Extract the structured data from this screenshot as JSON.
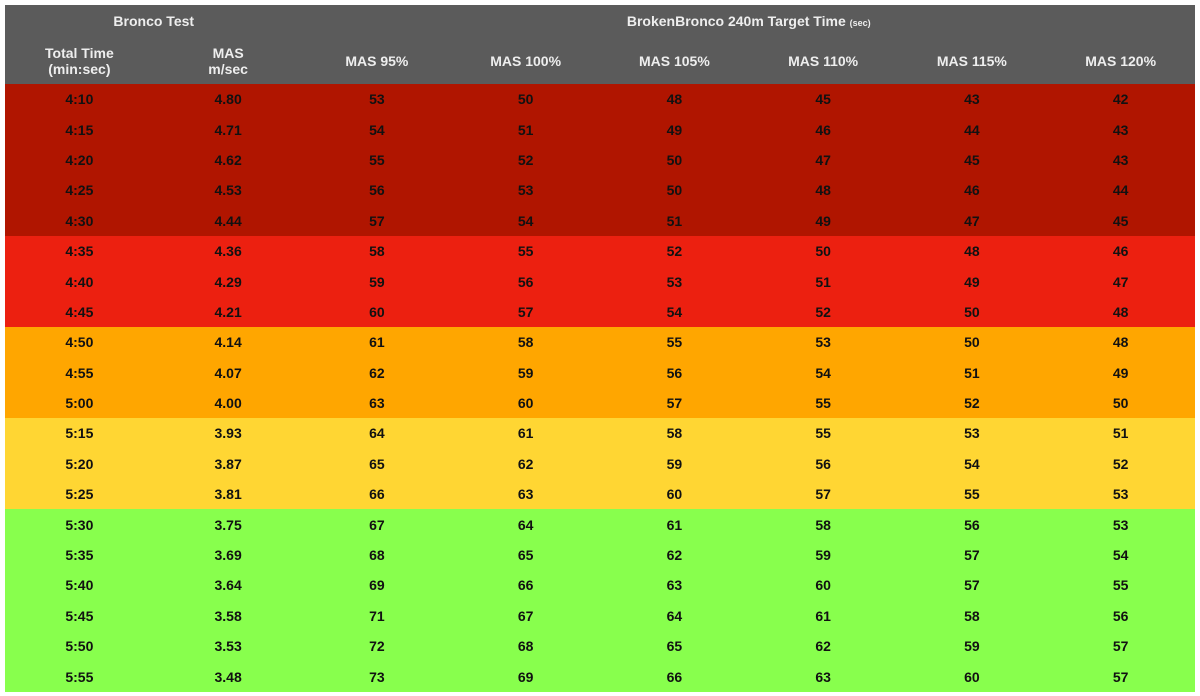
{
  "header": {
    "group_left": "Bronco Test",
    "group_right": {
      "title": "BrokenBronco 240m Target Time",
      "unit": "(sec)"
    },
    "columns": [
      [
        "Total Time",
        "(min:sec)"
      ],
      [
        "MAS",
        "m/sec"
      ],
      [
        "MAS 95%"
      ],
      [
        "MAS 100%"
      ],
      [
        "MAS 105%"
      ],
      [
        "MAS 110%"
      ],
      [
        "MAS 115%"
      ],
      [
        "MAS 120%"
      ]
    ],
    "color": "#5b5b5b"
  },
  "table": {
    "groups": [
      {
        "color": "#b01500",
        "rows": [
          [
            "4:10",
            "4.80",
            "53",
            "50",
            "48",
            "45",
            "43",
            "42"
          ],
          [
            "4:15",
            "4.71",
            "54",
            "51",
            "49",
            "46",
            "44",
            "43"
          ],
          [
            "4:20",
            "4.62",
            "55",
            "52",
            "50",
            "47",
            "45",
            "43"
          ],
          [
            "4:25",
            "4.53",
            "56",
            "53",
            "50",
            "48",
            "46",
            "44"
          ],
          [
            "4:30",
            "4.44",
            "57",
            "54",
            "51",
            "49",
            "47",
            "45"
          ]
        ]
      },
      {
        "color": "#ec2010",
        "rows": [
          [
            "4:35",
            "4.36",
            "58",
            "55",
            "52",
            "50",
            "48",
            "46"
          ],
          [
            "4:40",
            "4.29",
            "59",
            "56",
            "53",
            "51",
            "49",
            "47"
          ],
          [
            "4:45",
            "4.21",
            "60",
            "57",
            "54",
            "52",
            "50",
            "48"
          ]
        ]
      },
      {
        "color": "#ffa600",
        "rows": [
          [
            "4:50",
            "4.14",
            "61",
            "58",
            "55",
            "53",
            "50",
            "48"
          ],
          [
            "4:55",
            "4.07",
            "62",
            "59",
            "56",
            "54",
            "51",
            "49"
          ],
          [
            "5:00",
            "4.00",
            "63",
            "60",
            "57",
            "55",
            "52",
            "50"
          ]
        ]
      },
      {
        "color": "#ffd633",
        "rows": [
          [
            "5:15",
            "3.93",
            "64",
            "61",
            "58",
            "55",
            "53",
            "51"
          ],
          [
            "5:20",
            "3.87",
            "65",
            "62",
            "59",
            "56",
            "54",
            "52"
          ],
          [
            "5:25",
            "3.81",
            "66",
            "63",
            "60",
            "57",
            "55",
            "53"
          ]
        ]
      },
      {
        "color": "#88ff4d",
        "rows": [
          [
            "5:30",
            "3.75",
            "67",
            "64",
            "61",
            "58",
            "56",
            "53"
          ],
          [
            "5:35",
            "3.69",
            "68",
            "65",
            "62",
            "59",
            "57",
            "54"
          ],
          [
            "5:40",
            "3.64",
            "69",
            "66",
            "63",
            "60",
            "57",
            "55"
          ],
          [
            "5:45",
            "3.58",
            "71",
            "67",
            "64",
            "61",
            "58",
            "56"
          ],
          [
            "5:50",
            "3.53",
            "72",
            "68",
            "65",
            "62",
            "59",
            "57"
          ],
          [
            "5:55",
            "3.48",
            "73",
            "69",
            "66",
            "63",
            "60",
            "57"
          ]
        ]
      }
    ]
  }
}
